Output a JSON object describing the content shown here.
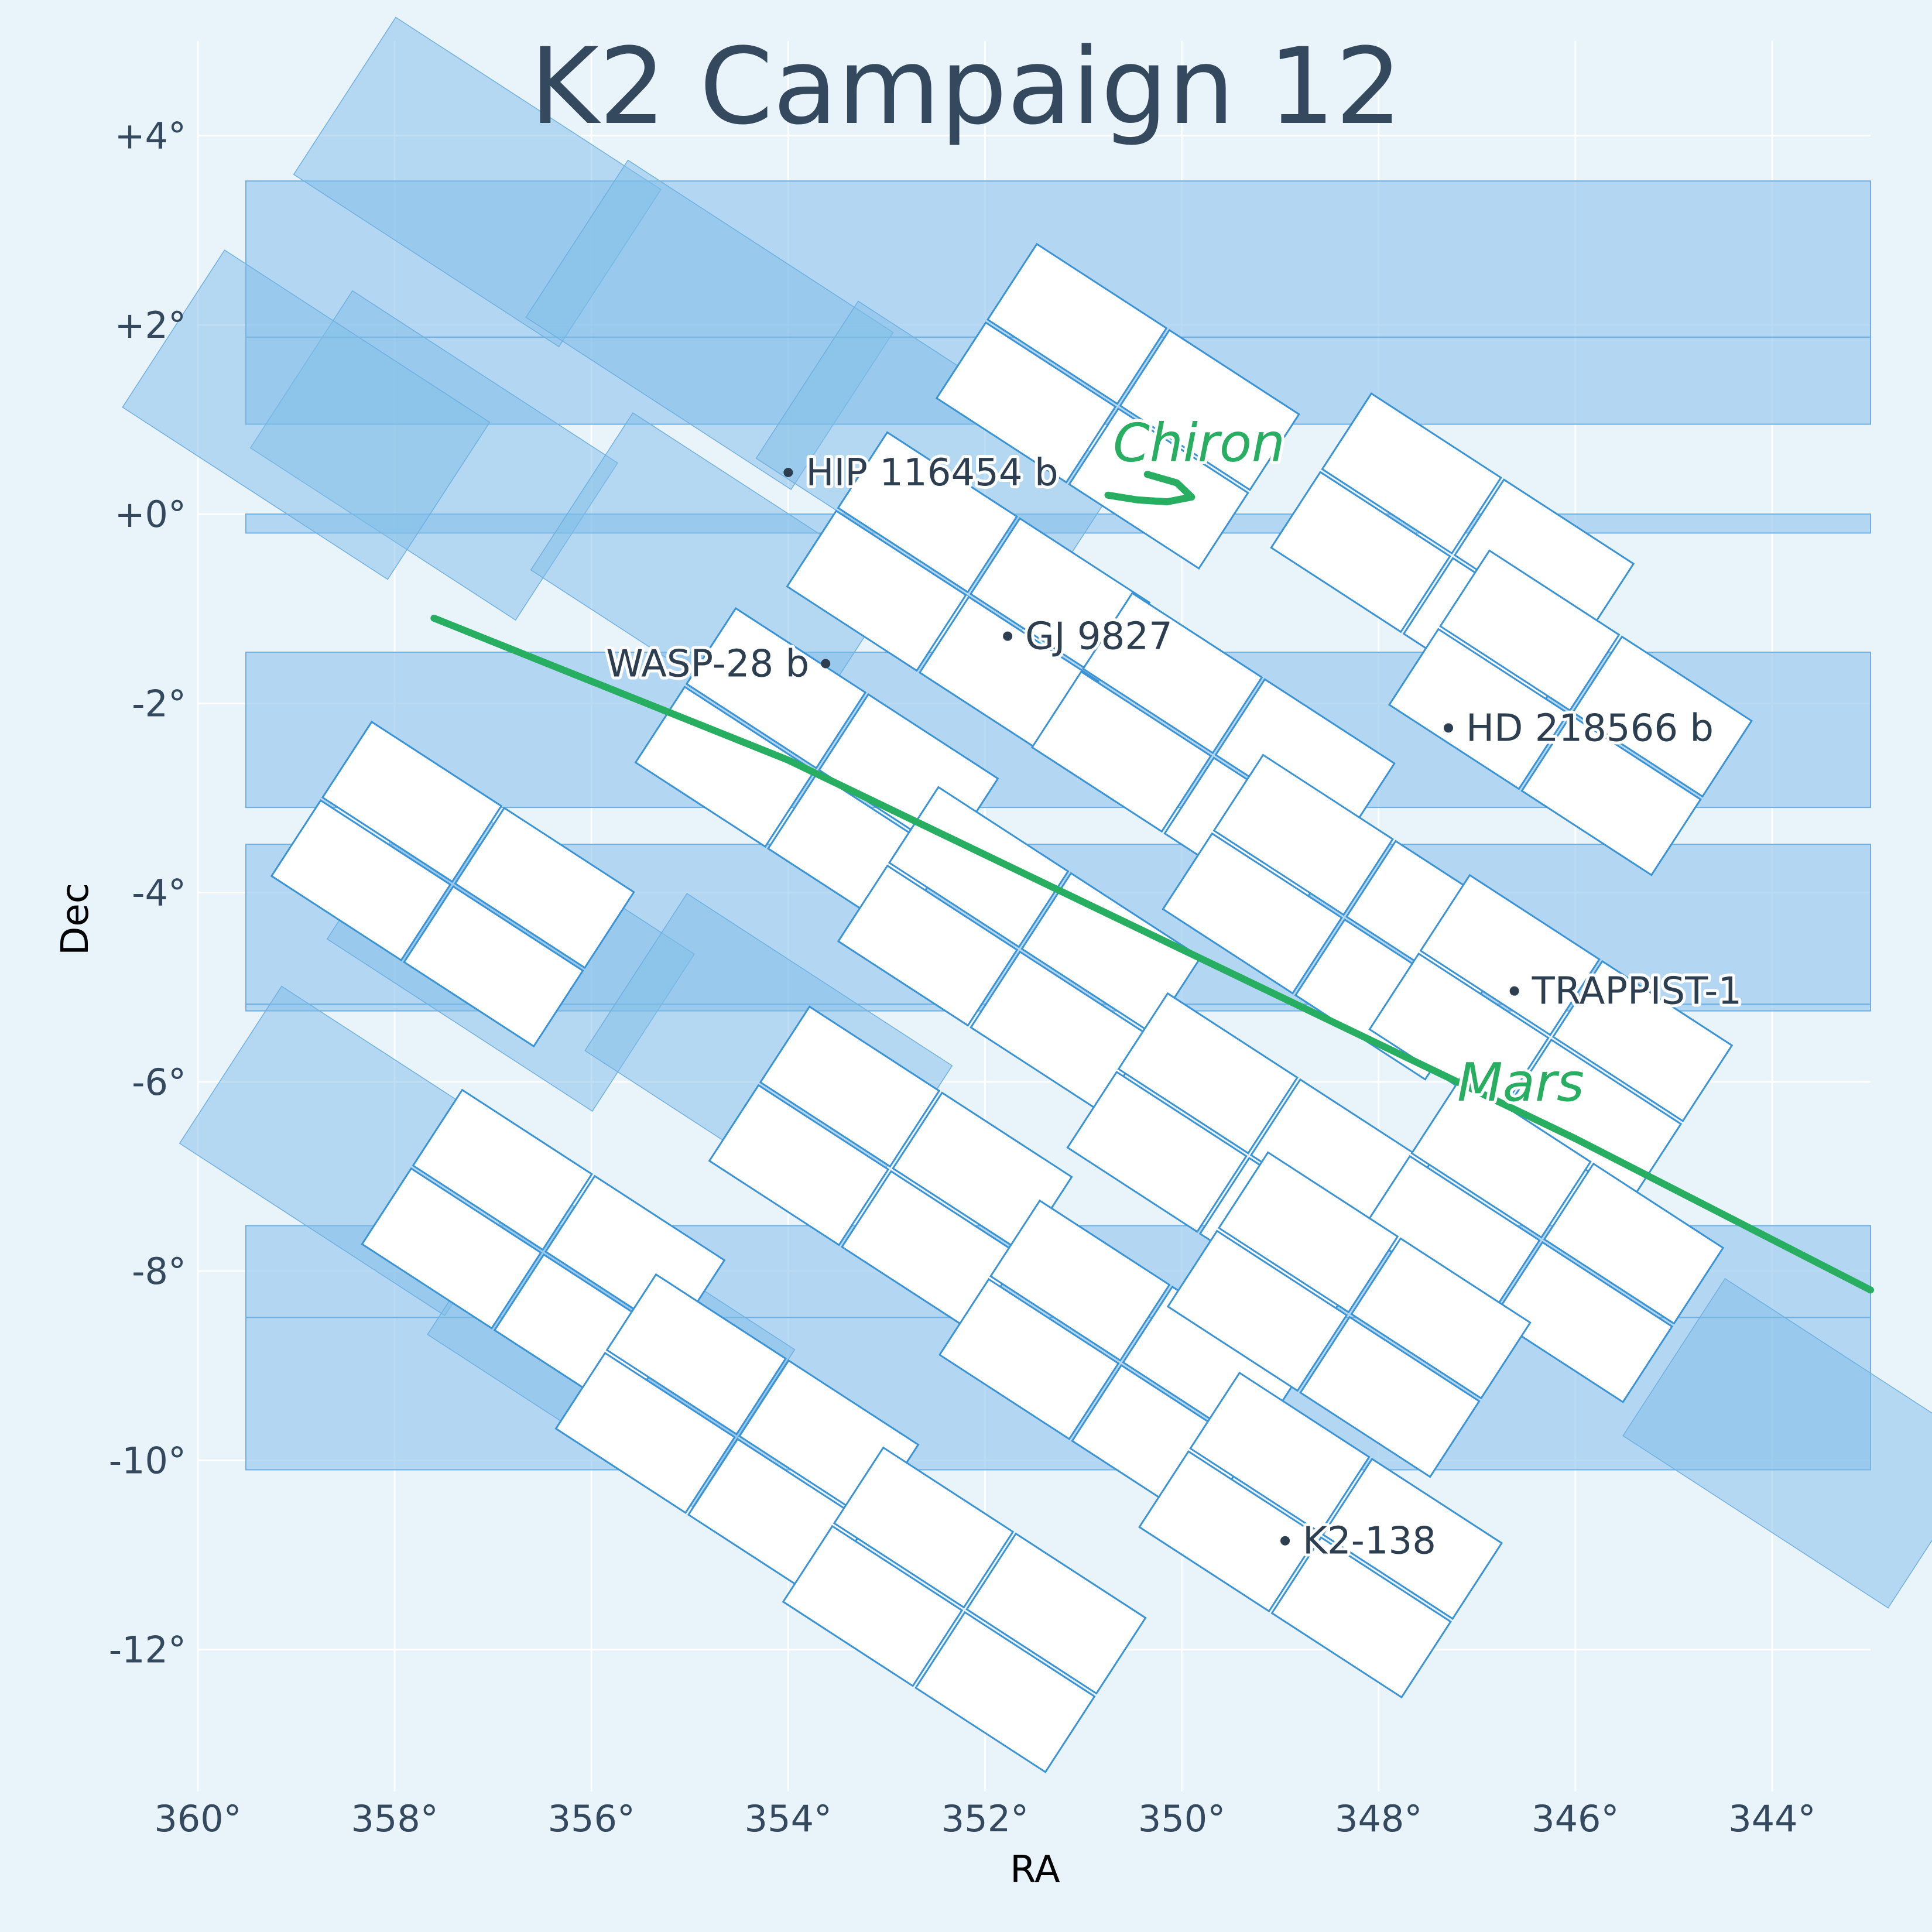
{
  "colors": {
    "background": "#e8f3fa",
    "coverage": "#9ccbee",
    "ccd_outline": "#3a93d4",
    "title": "#34495e",
    "track": "#27ae60",
    "grid": "#ffffff"
  },
  "chart_data": {
    "type": "scatter",
    "title": "K2 Campaign 12",
    "xlabel": "RA",
    "ylabel": "Dec",
    "xlim": [
      360,
      343
    ],
    "ylim": [
      -13.5,
      5
    ],
    "x_ticks": [
      360,
      358,
      356,
      354,
      352,
      350,
      348,
      346,
      344
    ],
    "x_tick_labels": [
      "360°",
      "358°",
      "356°",
      "354°",
      "352°",
      "350°",
      "348°",
      "346°",
      "344°"
    ],
    "y_ticks": [
      4,
      2,
      0,
      -2,
      -4,
      -6,
      -8,
      -10,
      -12
    ],
    "y_tick_labels": [
      "+4°",
      "+2°",
      "+0°",
      "-2°",
      "-4°",
      "-6°",
      "-8°",
      "-10°",
      "-12°"
    ],
    "grid": true,
    "field_of_view": {
      "rotation_deg": 33,
      "module_centers": [
        {
          "ra": 350.65,
          "dec": 1.14
        },
        {
          "ra": 347.25,
          "dec": -0.44
        },
        {
          "ra": 346.05,
          "dec": -2.1
        },
        {
          "ra": 352.17,
          "dec": -0.85
        },
        {
          "ra": 349.68,
          "dec": -2.55
        },
        {
          "ra": 348.35,
          "dec": -4.26
        },
        {
          "ra": 346.25,
          "dec": -5.53
        },
        {
          "ra": 357.41,
          "dec": -3.91
        },
        {
          "ra": 353.71,
          "dec": -2.71
        },
        {
          "ra": 351.65,
          "dec": -4.6
        },
        {
          "ra": 349.32,
          "dec": -6.78
        },
        {
          "ra": 346.34,
          "dec": -7.67
        },
        {
          "ra": 356.49,
          "dec": -7.8
        },
        {
          "ra": 352.96,
          "dec": -6.92
        },
        {
          "ra": 350.62,
          "dec": -8.97
        },
        {
          "ra": 348.3,
          "dec": -8.46
        },
        {
          "ra": 354.52,
          "dec": -9.75
        },
        {
          "ra": 352.21,
          "dec": -11.58
        },
        {
          "ra": 348.59,
          "dec": -10.79
        }
      ],
      "lost_module_centers": [
        {
          "ra": 357.16,
          "dec": 3.51
        },
        {
          "ra": 354.8,
          "dec": 2.0
        },
        {
          "ra": 352.46,
          "dec": 0.51
        },
        {
          "ra": 357.6,
          "dec": 0.62
        },
        {
          "ra": 354.75,
          "dec": -0.67
        },
        {
          "ra": 358.9,
          "dec": 1.05
        },
        {
          "ra": 356.82,
          "dec": -4.57
        },
        {
          "ra": 354.2,
          "dec": -5.75
        },
        {
          "ra": 358.32,
          "dec": -6.73
        },
        {
          "ra": 355.8,
          "dec": -8.75
        },
        {
          "ra": 343.65,
          "dec": -9.82
        }
      ]
    },
    "coverage_bands": [
      {
        "dec_top": 3.52,
        "dec_bottom": 1.87
      },
      {
        "dec_top": 1.87,
        "dec_bottom": 0.95
      },
      {
        "dec_top": 0.0,
        "dec_bottom": -0.2
      },
      {
        "dec_top": -1.46,
        "dec_bottom": -3.1
      },
      {
        "dec_top": -3.49,
        "dec_bottom": -5.18
      },
      {
        "dec_top": -5.18,
        "dec_bottom": -5.25
      },
      {
        "dec_top": -7.52,
        "dec_bottom": -8.49
      },
      {
        "dec_top": -8.49,
        "dec_bottom": -10.1
      }
    ],
    "targets": [
      {
        "name": "HIP 116454 b",
        "ra": 354.0,
        "dec": 0.44
      },
      {
        "name": "GJ 9827",
        "ra": 351.77,
        "dec": -1.29
      },
      {
        "name": "WASP-28 b",
        "ra": 353.62,
        "dec": -1.58
      },
      {
        "name": "HD 218566 b",
        "ra": 347.29,
        "dec": -2.26
      },
      {
        "name": "TRAPPIST-1",
        "ra": 346.62,
        "dec": -5.04
      },
      {
        "name": "K2-138",
        "ra": 348.95,
        "dec": -10.85
      }
    ],
    "moving_objects": [
      {
        "name": "Mars",
        "color": "#27ae60",
        "track": [
          {
            "ra": 357.6,
            "dec": -1.1
          },
          {
            "ra": 354.0,
            "dec": -2.6
          },
          {
            "ra": 350.0,
            "dec": -4.6
          },
          {
            "ra": 346.0,
            "dec": -6.6
          },
          {
            "ra": 343.0,
            "dec": -8.2
          }
        ],
        "label_ra": 347.2,
        "label_dec": -6.2
      },
      {
        "name": "Chiron",
        "color": "#27ae60",
        "track": [
          {
            "ra": 350.75,
            "dec": 0.2
          },
          {
            "ra": 350.45,
            "dec": 0.15
          },
          {
            "ra": 350.15,
            "dec": 0.13
          },
          {
            "ra": 349.9,
            "dec": 0.18
          },
          {
            "ra": 350.05,
            "dec": 0.33
          },
          {
            "ra": 350.35,
            "dec": 0.42
          }
        ],
        "label_ra": 350.7,
        "label_dec": 0.56
      }
    ]
  }
}
